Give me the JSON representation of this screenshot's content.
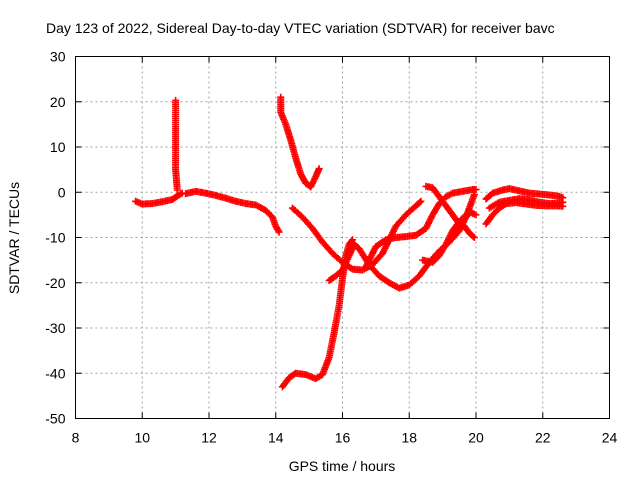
{
  "chart_data": {
    "type": "scatter",
    "title": "Day 123 of 2022, Sidereal Day-to-day VTEC variation (SDTVAR) for receiver bavc",
    "xlabel": "GPS time / hours",
    "ylabel": "SDTVAR / TECUs",
    "xlim": [
      8,
      24
    ],
    "ylim": [
      -50,
      30
    ],
    "xticks": [
      8,
      10,
      12,
      14,
      16,
      18,
      20,
      22,
      24
    ],
    "yticks": [
      -50,
      -40,
      -30,
      -20,
      -10,
      0,
      10,
      20,
      30
    ],
    "grid": true,
    "marker": "+",
    "color": "#ff0000",
    "segments": [
      {
        "name": "trace-a",
        "points": [
          [
            9.8,
            -2
          ],
          [
            10.0,
            -2.6
          ],
          [
            10.3,
            -2.5
          ],
          [
            10.6,
            -2.1
          ],
          [
            10.9,
            -1.6
          ],
          [
            11.1,
            -0.6
          ],
          [
            11.2,
            -0.2
          ]
        ]
      },
      {
        "name": "trace-b",
        "points": [
          [
            11.0,
            20.3
          ],
          [
            11.0,
            15.0
          ],
          [
            11.0,
            6.2
          ],
          [
            11.0,
            5.0
          ],
          [
            11.05,
            0.5
          ]
        ]
      },
      {
        "name": "trace-c",
        "points": [
          [
            11.3,
            -0.3
          ],
          [
            11.6,
            0.2
          ],
          [
            11.9,
            -0.2
          ],
          [
            12.2,
            -0.7
          ],
          [
            12.5,
            -1.3
          ],
          [
            12.8,
            -2.0
          ],
          [
            13.1,
            -2.5
          ],
          [
            13.4,
            -2.8
          ],
          [
            13.7,
            -4.0
          ],
          [
            13.9,
            -5.5
          ],
          [
            14.0,
            -7.5
          ],
          [
            14.1,
            -8.8
          ]
        ]
      },
      {
        "name": "trace-d",
        "points": [
          [
            14.15,
            21.0
          ],
          [
            14.15,
            17.7
          ],
          [
            14.3,
            15.0
          ],
          [
            14.45,
            11.5
          ],
          [
            14.6,
            7.5
          ],
          [
            14.75,
            4.0
          ],
          [
            14.9,
            2.0
          ],
          [
            15.05,
            1.2
          ],
          [
            15.2,
            3.5
          ],
          [
            15.3,
            5.2
          ]
        ]
      },
      {
        "name": "trace-e",
        "points": [
          [
            14.5,
            -3.5
          ],
          [
            14.8,
            -5.5
          ],
          [
            15.1,
            -8.0
          ],
          [
            15.4,
            -11.0
          ],
          [
            15.7,
            -13.5
          ],
          [
            16.0,
            -15.5
          ],
          [
            16.3,
            -17.0
          ],
          [
            16.6,
            -17.2
          ],
          [
            16.9,
            -16.0
          ],
          [
            17.2,
            -13.5
          ],
          [
            17.4,
            -10.5
          ],
          [
            17.6,
            -7.5
          ],
          [
            17.9,
            -5.0
          ],
          [
            18.2,
            -3.0
          ],
          [
            18.35,
            -2.0
          ]
        ]
      },
      {
        "name": "trace-f",
        "points": [
          [
            14.2,
            -43.0
          ],
          [
            14.4,
            -41.0
          ],
          [
            14.6,
            -40.0
          ],
          [
            14.9,
            -40.3
          ],
          [
            15.2,
            -41.2
          ],
          [
            15.4,
            -40.3
          ],
          [
            15.6,
            -36.5
          ],
          [
            15.75,
            -31.0
          ],
          [
            15.9,
            -25.0
          ],
          [
            16.0,
            -19.0
          ],
          [
            16.1,
            -14.0
          ],
          [
            16.2,
            -11.5
          ],
          [
            16.3,
            -10.5
          ]
        ]
      },
      {
        "name": "trace-g",
        "points": [
          [
            15.6,
            -19.5
          ],
          [
            15.8,
            -18.5
          ],
          [
            16.0,
            -17.2
          ],
          [
            16.2,
            -14.0
          ],
          [
            16.35,
            -11.5
          ],
          [
            16.5,
            -12.5
          ],
          [
            16.8,
            -16.0
          ],
          [
            17.1,
            -18.5
          ],
          [
            17.4,
            -20.0
          ],
          [
            17.7,
            -21.2
          ],
          [
            18.0,
            -20.5
          ],
          [
            18.3,
            -18.5
          ],
          [
            18.6,
            -15.5
          ],
          [
            18.9,
            -13.0
          ],
          [
            19.2,
            -11.0
          ],
          [
            19.5,
            -8.5
          ],
          [
            19.7,
            -5.5
          ],
          [
            19.85,
            -2.5
          ],
          [
            19.95,
            -0.5
          ]
        ]
      },
      {
        "name": "trace-h",
        "points": [
          [
            16.7,
            -16.5
          ],
          [
            17.0,
            -12.0
          ],
          [
            17.3,
            -10.5
          ],
          [
            17.6,
            -10.0
          ],
          [
            17.9,
            -9.8
          ],
          [
            18.2,
            -9.5
          ],
          [
            18.5,
            -8.0
          ],
          [
            18.7,
            -5.0
          ],
          [
            18.9,
            -2.5
          ],
          [
            19.1,
            -1.0
          ],
          [
            19.3,
            -0.2
          ],
          [
            19.6,
            0.2
          ],
          [
            19.9,
            0.6
          ],
          [
            20.0,
            0.6
          ]
        ]
      },
      {
        "name": "trace-i",
        "points": [
          [
            18.4,
            -15.0
          ],
          [
            18.7,
            -15.5
          ],
          [
            18.9,
            -14.0
          ],
          [
            19.1,
            -11.5
          ],
          [
            19.3,
            -8.5
          ],
          [
            19.5,
            -6.5
          ],
          [
            19.7,
            -5.0
          ],
          [
            19.85,
            -4.5
          ],
          [
            20.0,
            -5.0
          ]
        ]
      },
      {
        "name": "trace-j",
        "points": [
          [
            18.5,
            1.3
          ],
          [
            18.7,
            1.0
          ],
          [
            18.95,
            -1.5
          ],
          [
            19.2,
            -4.0
          ],
          [
            19.45,
            -6.5
          ],
          [
            19.65,
            -7.5
          ],
          [
            19.8,
            -9.0
          ],
          [
            19.95,
            -10.0
          ]
        ]
      },
      {
        "name": "trace-k",
        "points": [
          [
            20.3,
            -7.0
          ],
          [
            20.5,
            -5.0
          ],
          [
            20.7,
            -3.5
          ],
          [
            20.9,
            -2.5
          ],
          [
            21.2,
            -2.3
          ],
          [
            21.5,
            -2.6
          ],
          [
            21.8,
            -2.9
          ],
          [
            22.1,
            -3.0
          ],
          [
            22.4,
            -3.0
          ],
          [
            22.6,
            -3.1
          ]
        ]
      },
      {
        "name": "trace-l",
        "points": [
          [
            20.3,
            -1.5
          ],
          [
            20.5,
            -0.2
          ],
          [
            20.8,
            0.5
          ],
          [
            21.0,
            0.8
          ],
          [
            21.3,
            0.3
          ],
          [
            21.6,
            -0.2
          ],
          [
            21.9,
            -0.4
          ],
          [
            22.2,
            -0.6
          ],
          [
            22.5,
            -0.9
          ],
          [
            22.6,
            -1.2
          ]
        ]
      },
      {
        "name": "trace-m",
        "points": [
          [
            20.4,
            -3.5
          ],
          [
            20.7,
            -2.2
          ],
          [
            21.0,
            -1.8
          ],
          [
            21.3,
            -1.4
          ],
          [
            21.6,
            -1.7
          ],
          [
            21.9,
            -2.2
          ],
          [
            22.2,
            -2.5
          ],
          [
            22.5,
            -2.4
          ],
          [
            22.6,
            -2.2
          ]
        ]
      }
    ]
  }
}
